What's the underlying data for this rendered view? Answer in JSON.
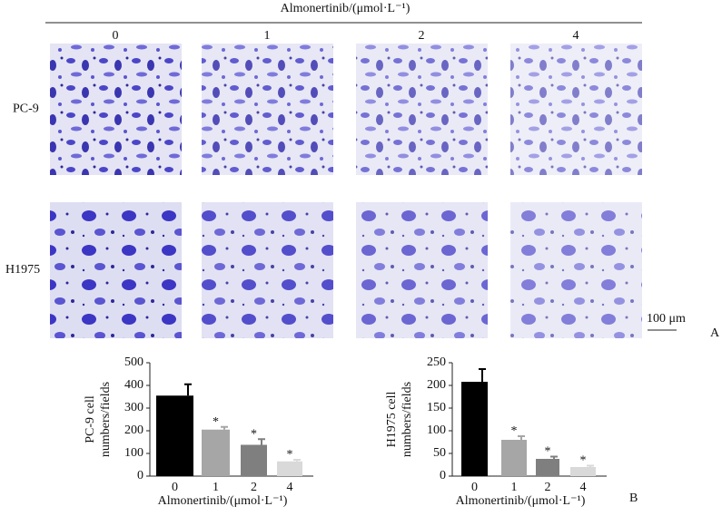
{
  "panel_a": {
    "title": "Almonertinib/(μmol·L⁻¹)",
    "columns": [
      "0",
      "1",
      "2",
      "4"
    ],
    "rows": [
      "PC-9",
      "H1975"
    ],
    "scale_bar": "100 μm",
    "label": "A"
  },
  "panel_b_label": "B",
  "chart_data": [
    {
      "type": "bar",
      "ylabel": [
        "PC-9 cell",
        "numbers/fields"
      ],
      "xlabel": "Almonertinib/(μmol·L⁻¹)",
      "categories": [
        "0",
        "1",
        "2",
        "4"
      ],
      "values": [
        355,
        205,
        138,
        65
      ],
      "errors": [
        50,
        12,
        25,
        7
      ],
      "colors": [
        "#000000",
        "#a6a6a6",
        "#7f7f7f",
        "#d9d9d9"
      ],
      "annotations": [
        null,
        "*",
        "*",
        "*"
      ],
      "ylim": [
        0,
        500
      ],
      "yticks": [
        0,
        100,
        200,
        300,
        400,
        500
      ]
    },
    {
      "type": "bar",
      "ylabel": [
        "H1975 cell",
        "numbers/fields"
      ],
      "xlabel": "Almonertinib/(μmol·L⁻¹)",
      "categories": [
        "0",
        "1",
        "2",
        "4"
      ],
      "values": [
        208,
        80,
        38,
        20
      ],
      "errors": [
        28,
        8,
        5,
        3
      ],
      "colors": [
        "#000000",
        "#a6a6a6",
        "#7f7f7f",
        "#d9d9d9"
      ],
      "annotations": [
        null,
        "*",
        "*",
        "*"
      ],
      "ylim": [
        0,
        250
      ],
      "yticks": [
        0,
        50,
        100,
        150,
        200,
        250
      ]
    }
  ]
}
